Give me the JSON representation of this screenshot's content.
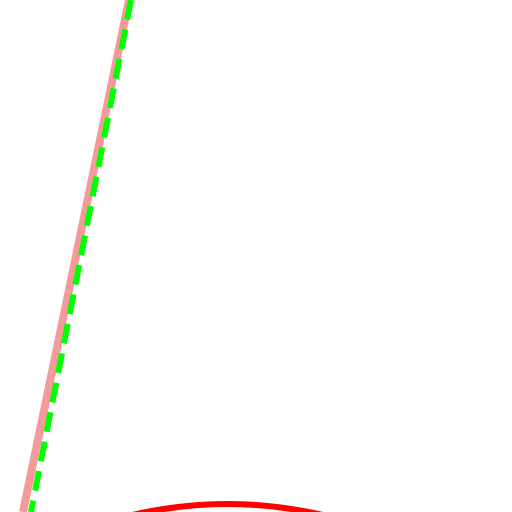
{
  "colors": {
    "background": "#ffffff",
    "solid_line": "#f59a9a",
    "dashed_line": "#00ff00",
    "arc": "#ff0000"
  },
  "shapes": [
    {
      "name": "solid-pink-line",
      "kind": "line",
      "style": "solid"
    },
    {
      "name": "dashed-green-line",
      "kind": "line",
      "style": "dashed"
    },
    {
      "name": "red-arc",
      "kind": "arc",
      "style": "solid"
    }
  ]
}
